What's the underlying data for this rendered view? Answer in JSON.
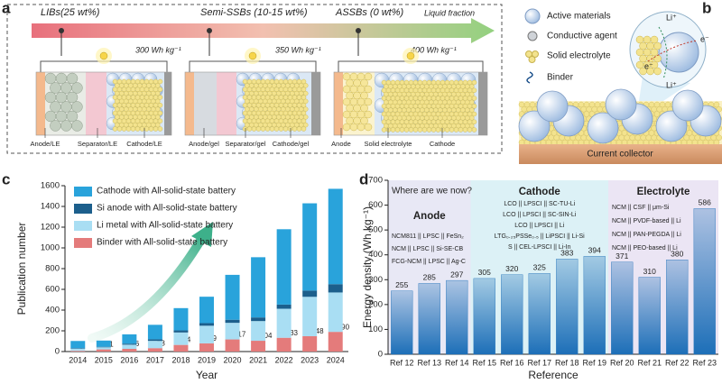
{
  "panel_labels": [
    "a",
    "b",
    "c",
    "d"
  ],
  "diagram_a": {
    "arrow_label": "Liquid fraction",
    "stages": [
      {
        "label": "LIBs(25 wt%)",
        "energy": "300 Wh kg⁻¹",
        "parts": [
          "Anode/LE",
          "Separator/LE",
          "Cathode/LE"
        ]
      },
      {
        "label": "Semi-SSBs (10-15 wt%)",
        "energy": "350 Wh kg⁻¹",
        "parts": [
          "Anode/gel",
          "Separator/gel",
          "Cathode/gel"
        ]
      },
      {
        "label": "ASSBs (0 wt%)",
        "energy": "400 Wh kg⁻¹",
        "parts": [
          "Anode",
          "Solid electrolyte",
          "Cathode"
        ]
      }
    ]
  },
  "diagram_b": {
    "legend": [
      "Active materials",
      "Conductive agent",
      "Solid electrolyte",
      "Binder"
    ],
    "zoom_labels": [
      "Li⁺",
      "e⁻",
      "e⁻",
      "Li⁺"
    ],
    "collector": "Current collector"
  },
  "chart_data": [
    {
      "type": "bar",
      "stacked": true,
      "x_label": "Year",
      "y_label": "Publication number",
      "categories": [
        "2014",
        "2015",
        "2016",
        "2017",
        "2018",
        "2019",
        "2020",
        "2021",
        "2022",
        "2023",
        "2024"
      ],
      "series": [
        {
          "name": "Cathode with All-solid-state battery",
          "color": "#29a3db",
          "values": [
            70,
            60,
            90,
            140,
            215,
            255,
            433,
            581,
            727,
            842,
            920
          ]
        },
        {
          "name": "Si anode with All-solid-state battery",
          "color": "#1c5f8c",
          "values": [
            5,
            5,
            10,
            15,
            20,
            25,
            30,
            35,
            40,
            60,
            80
          ]
        },
        {
          "name": "Li metal with All-solid-state battery",
          "color": "#a9def3",
          "values": [
            20,
            20,
            40,
            70,
            120,
            170,
            160,
            190,
            280,
            380,
            380
          ]
        },
        {
          "name": "Binder with All-solid-state battery",
          "color": "#e47b7b",
          "values": [
            7,
            21,
            26,
            33,
            64,
            79,
            117,
            104,
            133,
            148,
            190
          ],
          "data_labels": true
        }
      ],
      "ylim": [
        0,
        1600
      ],
      "yticks": [
        0,
        200,
        400,
        600,
        800,
        1000,
        1200,
        1400,
        1600
      ],
      "legend": "upper left"
    },
    {
      "type": "bar",
      "title": "Where are we now?",
      "x_label": "Reference",
      "y_label": "Energy density (Wh kg⁻¹)",
      "color": "#1d6fb8",
      "ylim": [
        0,
        700
      ],
      "yticks": [
        0,
        100,
        200,
        300,
        400,
        500,
        600,
        700
      ],
      "data_labels": true,
      "groups": [
        {
          "title": "Anode",
          "title_color": "#1f3f7a",
          "background": "#e8e8f5",
          "notes": [
            "NCM811 || LPSC || FeSn₂",
            "NCM || LPSC || Si-SE-CB",
            "FCG-NCM || LPSC || Ag-C"
          ],
          "categories": [
            "Ref 12",
            "Ref 13",
            "Ref 14"
          ],
          "values": [
            255,
            285,
            297
          ]
        },
        {
          "title": "Cathode",
          "title_color": "#1f6f9e",
          "background": "#dcf1f6",
          "notes": [
            "LCO || LPSCI || SC-TU-Li",
            "LCO || LPSCI || SC-SIN-Li",
            "LCO || LPSCI || Li",
            "LTG₀.₂₅PSSe₀.₅ || LiPSCI || Li-Si",
            "S || CEL-LPSCI || Li-In"
          ],
          "categories": [
            "Ref 15",
            "Ref 16",
            "Ref 17",
            "Ref 18",
            "Ref 19"
          ],
          "values": [
            305,
            320,
            325,
            383,
            394
          ]
        },
        {
          "title": "Electrolyte",
          "title_color": "#7a4aa2",
          "background": "#ebe5f4",
          "notes": [
            "NCM || CSF || μm-Si",
            "NCM || PVDF-based || Li",
            "NCM || PAN-PEGDA || Li",
            "NCM || PEO-based || Li"
          ],
          "categories": [
            "Ref 20",
            "Ref 21",
            "Ref 22",
            "Ref 23"
          ],
          "values": [
            371,
            310,
            380,
            586
          ]
        }
      ]
    }
  ]
}
